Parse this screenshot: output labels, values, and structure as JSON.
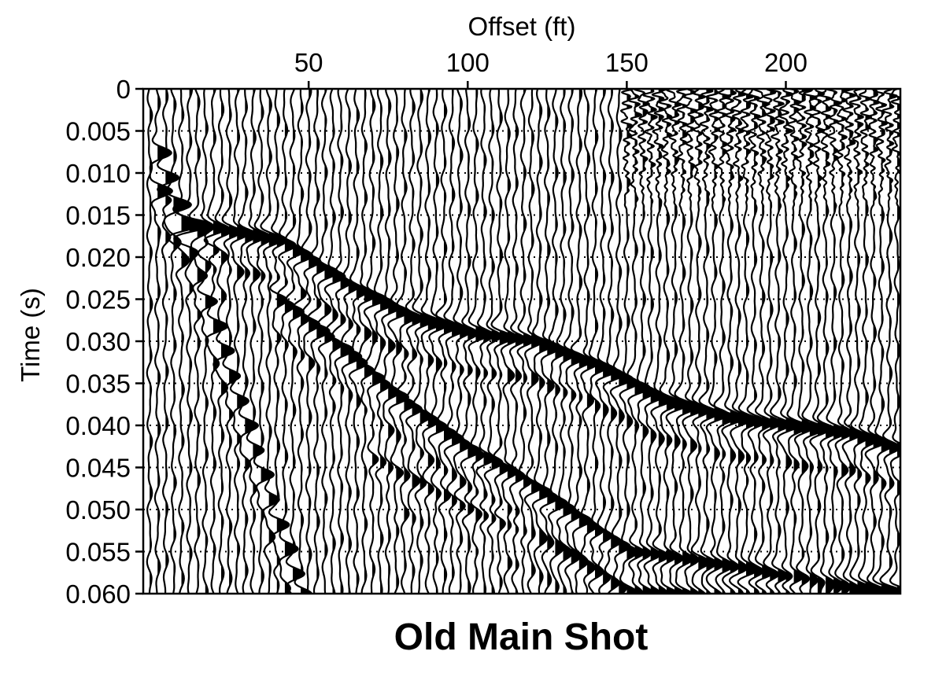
{
  "chart_data": {
    "type": "seismic-wiggle",
    "title": "Old Main Shot",
    "xlabel": "Offset (ft)",
    "ylabel": "Time (s)",
    "xaxis_position": "top",
    "xlim": [
      -2,
      236
    ],
    "ylim": [
      0,
      0.06
    ],
    "y_inverted": true,
    "x_ticks": [
      50,
      100,
      150,
      200
    ],
    "x_tick_labels": [
      "50",
      "100",
      "150",
      "200"
    ],
    "y_ticks": [
      0,
      0.005,
      0.01,
      0.015,
      0.02,
      0.025,
      0.03,
      0.035,
      0.04,
      0.045,
      0.05,
      0.055,
      0.06
    ],
    "y_tick_labels": [
      "0",
      "0.005",
      "0.010",
      "0.015",
      "0.020",
      "0.025",
      "0.030",
      "0.035",
      "0.040",
      "0.045",
      "0.050",
      "0.055",
      "0.060"
    ],
    "grid": "horizontal dotted at each y tick",
    "trace_spacing_ft": 2.5,
    "trace_count": 96,
    "first_trace_offset_ft": 0,
    "fill": "positive lobes filled black",
    "arrivals": [
      {
        "name": "direct-wave",
        "offset_ft": [
          2,
          47
        ],
        "time_s": [
          0.007,
          0.06
        ],
        "amplitude": 1.0
      },
      {
        "name": "refraction-early",
        "offset_ft": [
          2,
          22
        ],
        "time_s": [
          0.012,
          0.02
        ],
        "amplitude": 0.7
      },
      {
        "name": "refraction-main",
        "offset_ft": [
          10,
          40,
          60,
          80,
          100,
          120,
          140,
          160,
          180,
          200,
          220,
          236
        ],
        "time_s": [
          0.016,
          0.018,
          0.023,
          0.027,
          0.029,
          0.03,
          0.033,
          0.037,
          0.039,
          0.04,
          0.041,
          0.043
        ],
        "amplitude": 1.0
      },
      {
        "name": "reflection",
        "offset_ft": [
          40,
          60,
          75,
          100,
          115,
          130,
          150,
          170,
          200,
          236
        ],
        "time_s": [
          0.025,
          0.031,
          0.036,
          0.043,
          0.046,
          0.05,
          0.055,
          0.056,
          0.058,
          0.06
        ],
        "amplitude": 0.85
      },
      {
        "name": "secondary",
        "offset_ft": [
          70,
          100,
          120,
          150,
          236
        ],
        "time_s": [
          0.044,
          0.05,
          0.053,
          0.06,
          0.06
        ],
        "amplitude": 0.5
      }
    ],
    "noise_window_s": [
      0,
      0.015
    ],
    "noise_offset_min_ft": 150
  }
}
